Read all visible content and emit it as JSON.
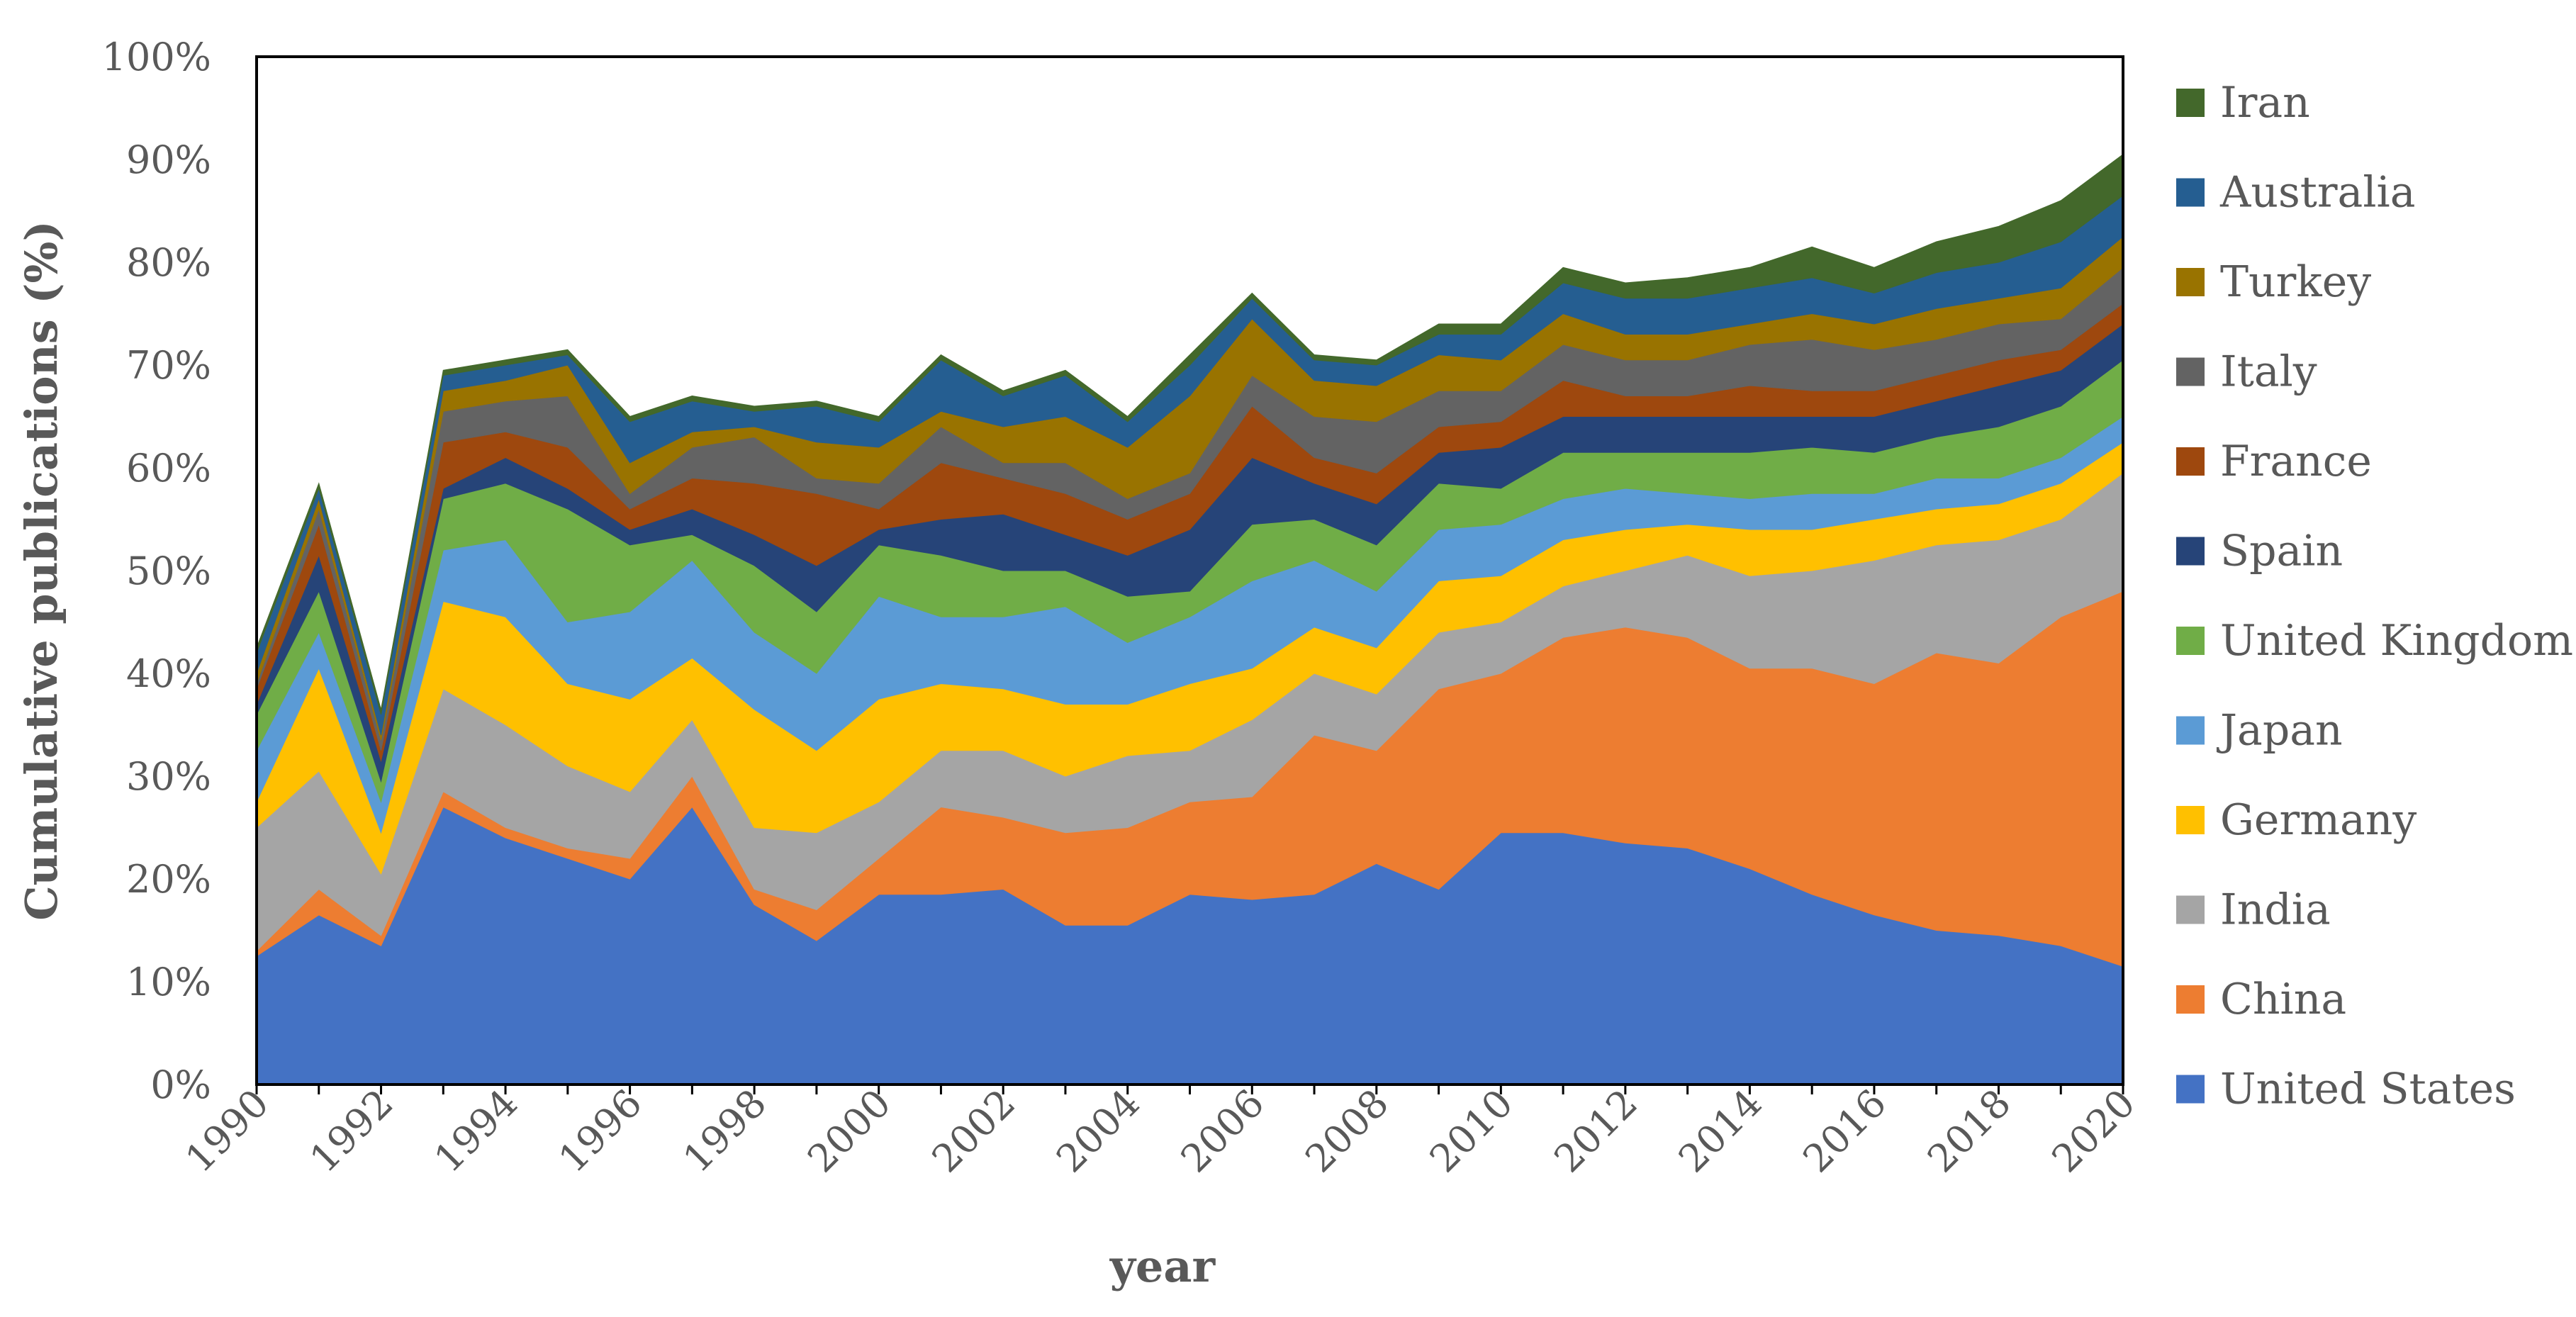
{
  "chart_data": {
    "type": "area",
    "stacked": true,
    "title": "",
    "xlabel": "year",
    "ylabel": "Cumulative  publications (%)",
    "ylim": [
      0,
      100
    ],
    "y_tick_labels": [
      "0%",
      "10%",
      "20%",
      "30%",
      "40%",
      "50%",
      "60%",
      "70%",
      "80%",
      "90%",
      "100%"
    ],
    "x": [
      1990,
      1991,
      1992,
      1993,
      1994,
      1995,
      1996,
      1997,
      1998,
      1999,
      2000,
      2001,
      2002,
      2003,
      2004,
      2005,
      2006,
      2007,
      2008,
      2009,
      2010,
      2011,
      2012,
      2013,
      2014,
      2015,
      2016,
      2017,
      2018,
      2019,
      2020
    ],
    "x_tick_labels": [
      "1990",
      "1992",
      "1994",
      "1996",
      "1998",
      "2000",
      "2002",
      "2004",
      "2006",
      "2008",
      "2010",
      "2012",
      "2014",
      "2016",
      "2018",
      "2020"
    ],
    "legend_position": "right",
    "series": [
      {
        "name": "United States",
        "color": "#4472C4",
        "values": [
          12.5,
          16.5,
          13.5,
          27,
          24,
          22,
          20,
          27,
          17.5,
          14,
          18.5,
          18.5,
          19,
          15.5,
          15.5,
          18.5,
          18,
          18.5,
          21.5,
          19,
          24.5,
          24.5,
          23.5,
          23,
          21,
          18.5,
          16.5,
          15,
          14.5,
          13.5,
          11.5
        ]
      },
      {
        "name": "China",
        "color": "#ED7D31",
        "values": [
          0.5,
          2.5,
          1,
          1.5,
          1,
          1,
          2,
          3,
          1.5,
          3,
          3.5,
          8.5,
          7,
          9,
          9.5,
          9,
          10,
          15.5,
          11,
          19.5,
          15.5,
          19,
          21,
          20.5,
          19.5,
          22,
          22.5,
          27,
          26.5,
          32,
          36.5
        ]
      },
      {
        "name": "India",
        "color": "#A5A5A5",
        "values": [
          12,
          11.5,
          6,
          10,
          10,
          8,
          6.5,
          5.5,
          6,
          7.5,
          5.5,
          5.5,
          6.5,
          5.5,
          7,
          5,
          7.5,
          6,
          5.5,
          5.5,
          5,
          5,
          5.5,
          8,
          9,
          9.5,
          12,
          10.5,
          12,
          9.5,
          11.5
        ]
      },
      {
        "name": "Germany",
        "color": "#FFC000",
        "values": [
          2.5,
          10,
          4,
          8.5,
          10.5,
          8,
          9,
          6,
          11.5,
          8,
          10,
          6.5,
          6,
          7,
          5,
          6.5,
          5,
          4.5,
          4.5,
          5,
          4.5,
          4.5,
          4,
          3,
          4.5,
          4,
          4,
          3.5,
          3.5,
          3.5,
          3
        ]
      },
      {
        "name": "Japan",
        "color": "#5B9BD5",
        "values": [
          5,
          3.5,
          3,
          5,
          7.5,
          6,
          8.5,
          9.5,
          7.5,
          7.5,
          10,
          6.5,
          7,
          9.5,
          6,
          6.5,
          8.5,
          6.5,
          5.5,
          5,
          5,
          4,
          4,
          3,
          3,
          3.5,
          2.5,
          3,
          2.5,
          2.5,
          2.5
        ]
      },
      {
        "name": "United Kingdom",
        "color": "#70AD47",
        "values": [
          3.5,
          4,
          2,
          5,
          5.5,
          11,
          6.5,
          2.5,
          6.5,
          6,
          5,
          6,
          4.5,
          3.5,
          4.5,
          2.5,
          5.5,
          4,
          4.5,
          4.5,
          3.5,
          4.5,
          3.5,
          4,
          4.5,
          4.5,
          4,
          4,
          5,
          5,
          5.5
        ]
      },
      {
        "name": "Spain",
        "color": "#264478",
        "values": [
          1,
          3.5,
          2,
          1,
          2.5,
          2,
          1.5,
          2.5,
          3,
          4.5,
          1.5,
          3.5,
          5.5,
          3.5,
          4,
          6,
          6.5,
          3.5,
          4,
          3,
          4,
          3.5,
          3.5,
          3.5,
          3.5,
          3,
          3.5,
          3.5,
          4,
          3.5,
          3.5
        ]
      },
      {
        "name": "France",
        "color": "#9E480E",
        "values": [
          1.5,
          3,
          1,
          4.5,
          2.5,
          4,
          2,
          3,
          5,
          7,
          2,
          5.5,
          3.5,
          4,
          3.5,
          3.5,
          5,
          2.5,
          3,
          2.5,
          2.5,
          3.5,
          2,
          2,
          3,
          2.5,
          2.5,
          2.5,
          2.5,
          2,
          2
        ]
      },
      {
        "name": "Italy",
        "color": "#636363",
        "values": [
          0.5,
          1.5,
          1,
          3,
          3,
          5,
          1.5,
          3,
          4.5,
          1.5,
          2.5,
          3.5,
          1.5,
          3,
          2,
          2,
          3,
          4,
          5,
          3.5,
          3,
          3.5,
          3.5,
          3.5,
          4,
          5,
          4,
          3.5,
          3.5,
          3,
          3.5
        ]
      },
      {
        "name": "Turkey",
        "color": "#997300",
        "values": [
          1,
          1,
          0.5,
          2,
          2,
          3,
          3,
          1.5,
          1,
          3.5,
          3.5,
          1.5,
          3.5,
          4.5,
          5,
          7.5,
          5.5,
          3.5,
          3.5,
          3.5,
          3,
          3,
          2.5,
          2.5,
          2,
          2.5,
          2.5,
          3,
          2.5,
          3,
          3
        ]
      },
      {
        "name": "Australia",
        "color": "#255E91",
        "values": [
          2,
          1,
          2,
          1.5,
          1.5,
          1,
          4,
          3,
          1.5,
          3.5,
          2.5,
          5,
          3,
          4,
          2.5,
          3,
          2,
          2,
          2,
          2,
          2.5,
          3,
          3.5,
          3.5,
          3.5,
          3.5,
          3,
          3.5,
          3.5,
          4.5,
          4
        ]
      },
      {
        "name": "Iran",
        "color": "#43682B",
        "values": [
          0.5,
          0.5,
          0.5,
          0.5,
          0.5,
          0.5,
          0.5,
          0.5,
          0.5,
          0.5,
          0.5,
          0.5,
          0.5,
          0.5,
          0.5,
          1,
          0.5,
          0.5,
          0.5,
          1,
          1,
          1.5,
          1.5,
          2,
          2,
          3,
          2.5,
          3,
          3.5,
          4,
          4
        ]
      }
    ]
  }
}
